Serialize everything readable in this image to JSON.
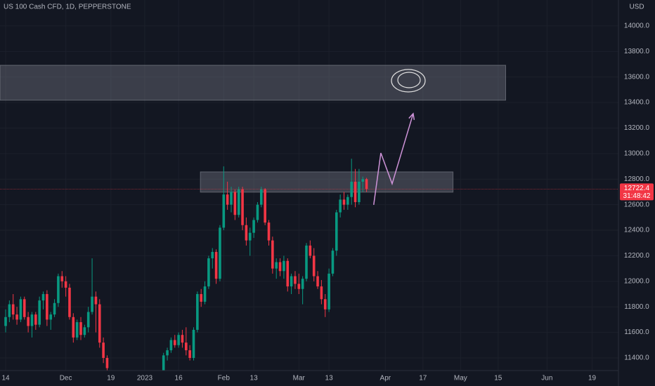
{
  "chart_data": {
    "type": "candlestick",
    "title": "US 100 Cash CFD, 1D, PEPPERSTONE",
    "currency": "USD",
    "countdown": "31:48:42",
    "up_color": "#089981",
    "down_color": "#f23645",
    "x": [
      0,
      1,
      2,
      3,
      4,
      5,
      6,
      7,
      8,
      9,
      10,
      11,
      12,
      13,
      14,
      15,
      16,
      17,
      18,
      19,
      20,
      21,
      22,
      23,
      24,
      25,
      26,
      27,
      42,
      43,
      44,
      45,
      46,
      47,
      48,
      49,
      50,
      51,
      52,
      53,
      54,
      55,
      56,
      57,
      58,
      59,
      60,
      61,
      62,
      63,
      64,
      65,
      66,
      67,
      68,
      69,
      70,
      71,
      72,
      73,
      74,
      75,
      76,
      77,
      78,
      79,
      80,
      81,
      82,
      83,
      84,
      85,
      86,
      87,
      88,
      89,
      90,
      91,
      92,
      93,
      94,
      95,
      96
    ],
    "open": [
      11650,
      11720,
      11820,
      11740,
      11700,
      11860,
      11720,
      11650,
      11740,
      11660,
      11850,
      11900,
      11700,
      11740,
      11830,
      12040,
      12000,
      11950,
      11720,
      11560,
      11680,
      11580,
      11640,
      11760,
      11880,
      11820,
      11520,
      11400,
      11300,
      11420,
      11460,
      11540,
      11500,
      11580,
      11520,
      11460,
      11400,
      11620,
      11900,
      11840,
      11960,
      12180,
      12230,
      12020,
      12420,
      12680,
      12600,
      12700,
      12520,
      12720,
      12440,
      12320,
      12380,
      12480,
      12600,
      12720,
      12460,
      12320,
      12100,
      12150,
      12080,
      12160,
      11960,
      12040,
      11980,
      11940,
      12020,
      12280,
      12200,
      12040,
      11960,
      11860,
      11780,
      12060,
      12240,
      12540,
      12640,
      12600,
      12660,
      12780,
      12620,
      12780,
      12800
    ],
    "high": [
      11780,
      11850,
      11900,
      11800,
      11880,
      11880,
      11760,
      11760,
      11760,
      11880,
      11920,
      11930,
      11760,
      11860,
      12060,
      12080,
      12040,
      11980,
      11750,
      11700,
      11720,
      11660,
      11800,
      12180,
      11920,
      11860,
      11560,
      11420,
      11440,
      11480,
      11560,
      11580,
      11600,
      11620,
      11640,
      11500,
      11640,
      11920,
      11940,
      12000,
      12200,
      12260,
      12250,
      12440,
      12900,
      12780,
      12740,
      12720,
      12740,
      12740,
      12500,
      12420,
      12500,
      12620,
      12740,
      12730,
      12480,
      12350,
      12180,
      12180,
      12200,
      12180,
      12060,
      12080,
      12060,
      12040,
      12300,
      12320,
      12260,
      12080,
      12010,
      11900,
      12100,
      12260,
      12560,
      12680,
      12700,
      12680,
      12960,
      12880,
      12880,
      12820,
      12810
    ],
    "low": [
      11600,
      11680,
      11700,
      11660,
      11680,
      11700,
      11600,
      11560,
      11620,
      11640,
      11780,
      11650,
      11620,
      11720,
      11800,
      11950,
      11880,
      11700,
      11520,
      11540,
      11540,
      11560,
      11600,
      11740,
      11600,
      11480,
      11360,
      11300,
      11290,
      11380,
      11440,
      11480,
      11480,
      11480,
      11420,
      11380,
      11380,
      11600,
      11800,
      11820,
      11940,
      12100,
      11980,
      12000,
      12400,
      12560,
      12540,
      12480,
      12500,
      12400,
      12280,
      12200,
      12340,
      12460,
      12580,
      12440,
      12280,
      12060,
      12020,
      12040,
      12020,
      11920,
      11900,
      11940,
      11900,
      11820,
      12000,
      12180,
      12000,
      11940,
      11820,
      11720,
      11760,
      12040,
      12200,
      12500,
      12560,
      12560,
      12600,
      12580,
      12600,
      12700,
      12700
    ],
    "close": [
      11720,
      11820,
      11740,
      11700,
      11860,
      11720,
      11650,
      11740,
      11660,
      11850,
      11900,
      11700,
      11740,
      11830,
      12040,
      12000,
      11950,
      11720,
      11560,
      11680,
      11580,
      11640,
      11760,
      11880,
      11820,
      11520,
      11400,
      11320,
      11420,
      11460,
      11540,
      11500,
      11580,
      11520,
      11460,
      11400,
      11620,
      11900,
      11840,
      11960,
      12180,
      12230,
      12020,
      12420,
      12680,
      12600,
      12700,
      12520,
      12720,
      12440,
      12320,
      12380,
      12480,
      12600,
      12720,
      12460,
      12320,
      12100,
      12150,
      12080,
      12160,
      11960,
      12040,
      11980,
      11940,
      12020,
      12280,
      12200,
      12040,
      11960,
      11860,
      11780,
      12060,
      12240,
      12540,
      12640,
      12600,
      12660,
      12780,
      12620,
      12780,
      12800,
      12722.4
    ],
    "xlim": [
      -1.5,
      163
    ],
    "xticks": [
      {
        "value": 0,
        "label": "14"
      },
      {
        "value": 16,
        "label": "Dec"
      },
      {
        "value": 28,
        "label": "19"
      },
      {
        "value": 37,
        "label": "2023"
      },
      {
        "value": 46,
        "label": "16"
      },
      {
        "value": 58,
        "label": "Feb"
      },
      {
        "value": 66,
        "label": "13"
      },
      {
        "value": 78,
        "label": "Mar"
      },
      {
        "value": 86,
        "label": "13"
      },
      {
        "value": 101,
        "label": "Apr"
      },
      {
        "value": 111,
        "label": "17"
      },
      {
        "value": 121,
        "label": "May"
      },
      {
        "value": 131,
        "label": "15"
      },
      {
        "value": 144,
        "label": "Jun"
      },
      {
        "value": 156,
        "label": "19"
      }
    ],
    "ylim": [
      11301,
      14203
    ],
    "yticks": [
      {
        "value": 11400,
        "label": "11400.0"
      },
      {
        "value": 11600,
        "label": "11600.0"
      },
      {
        "value": 11800,
        "label": "11800.0"
      },
      {
        "value": 12000,
        "label": "12000.0"
      },
      {
        "value": 12200,
        "label": "12200.0"
      },
      {
        "value": 12400,
        "label": "12400.0"
      },
      {
        "value": 12600,
        "label": "12600.0"
      },
      {
        "value": 12800,
        "label": "12800.0"
      },
      {
        "value": 13000,
        "label": "13000.0"
      },
      {
        "value": 13200,
        "label": "13200.0"
      },
      {
        "value": 13400,
        "label": "13400.0"
      },
      {
        "value": 13600,
        "label": "13600.0"
      },
      {
        "value": 13800,
        "label": "13800.0"
      },
      {
        "value": 14000,
        "label": "14000.0"
      }
    ],
    "zones": [
      {
        "x": [
          -1.5,
          133
        ],
        "y": [
          13418,
          13692
        ]
      },
      {
        "x": [
          51.8,
          119
        ],
        "y": [
          12698,
          12857
        ]
      }
    ],
    "projection": {
      "color": "#ce93d8",
      "x": [
        97.9,
        99.8,
        102.8,
        108.4
      ],
      "y": [
        12599,
        13005,
        12764,
        13313
      ]
    }
  }
}
